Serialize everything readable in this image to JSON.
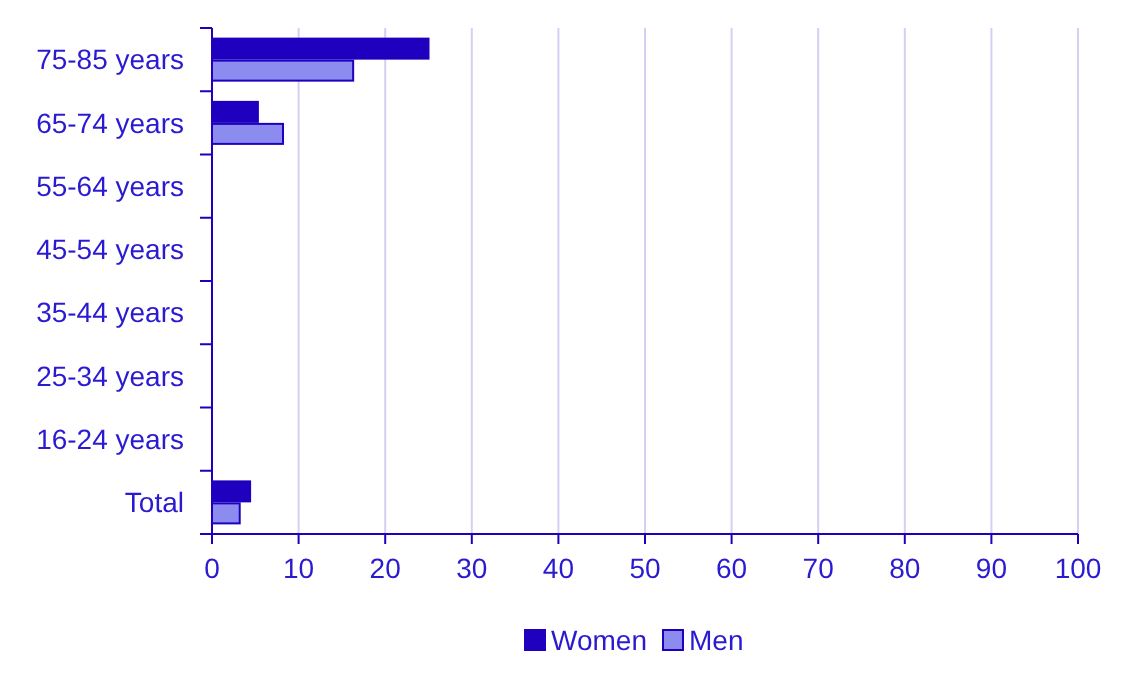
{
  "chart_data": {
    "type": "bar",
    "orientation": "horizontal",
    "categories": [
      "75-85 years",
      "65-74 years",
      "55-64 years",
      "45-54 years",
      "35-44 years",
      "25-34 years",
      "16-24 years",
      "Total"
    ],
    "series": [
      {
        "name": "Women",
        "color": "#1e00be",
        "values": [
          25,
          5.3,
          null,
          null,
          null,
          null,
          null,
          4.4
        ]
      },
      {
        "name": "Men",
        "color": "#8c8cf0",
        "values": [
          16.3,
          8.2,
          null,
          null,
          null,
          null,
          null,
          3.2
        ]
      }
    ],
    "xlim": [
      0,
      100
    ],
    "xticks": [
      0,
      10,
      20,
      30,
      40,
      50,
      60,
      70,
      80,
      90,
      100
    ],
    "grid": "x",
    "legend": "bottom"
  }
}
